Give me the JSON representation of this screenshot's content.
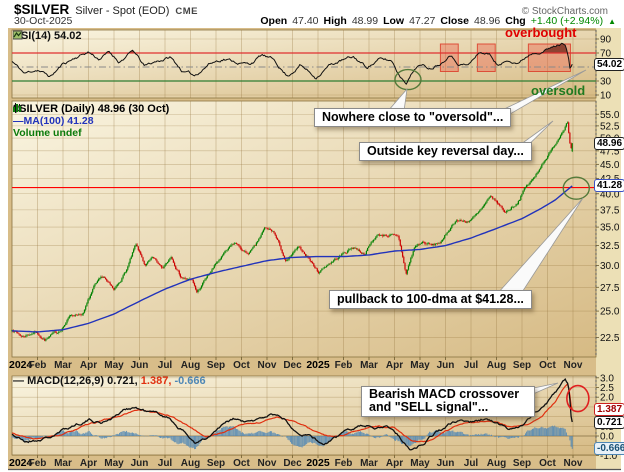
{
  "header": {
    "symbol": "$SILVER",
    "description": "Silver - Spot (EOD)",
    "exchange": "CME",
    "copyright": "© StockCharts.com",
    "date": "30-Oct-2025",
    "quote": {
      "open_label": "Open",
      "open": "47.40",
      "high_label": "High",
      "high": "48.99",
      "low_label": "Low",
      "low": "47.27",
      "close_label": "Close",
      "close": "48.96",
      "chg_label": "Chg",
      "chg": "+1.40 (+2.94%)",
      "chg_direction": "up"
    }
  },
  "rsi_panel": {
    "legend": "RSI(14) 54.02",
    "badge": "54.02",
    "overbought_label": "overbought",
    "oversold_label": "oversold"
  },
  "main_panel": {
    "legend": "$SILVER (Daily) 48.96 (30 Oct)",
    "ma_legend": "MA(100) 41.28",
    "volume_legend": "Volume undef",
    "price_badge": "48.96",
    "ma_badge": "41.28"
  },
  "macd_panel": {
    "legend": "MACD(12,26,9) 0.721,",
    "legend_signal": "1.387,",
    "legend_hist": "-0.666",
    "macd_badge": "0.721",
    "signal_badge": "1.387",
    "hist_badge": "-0.666"
  },
  "annotations": {
    "rsi_note": "Nowhere close to \"oversold\"...",
    "reversal_note": "Outside key reversal day...",
    "pullback_note": "pullback to 100-dma at $41.28...",
    "macd_note": "Bearish MACD crossover and \"SELL signal\"..."
  },
  "colors": {
    "background": "#d8bd89",
    "plot_light": "#faf5e1",
    "plot_dark": "#d6ba84",
    "gutter": "#ece0b6",
    "grid": "rgba(150,120,65,0.45)",
    "up_candle": "#008000",
    "down_candle": "#cc0000",
    "ma_line": "#2233bb",
    "rsi_line": "#111111",
    "overbought_line": "#e03030",
    "oversold_line": "#2e7d32",
    "midline": "#8a8a8a",
    "support_line": "#ff0000",
    "macd_line": "#111111",
    "signal_line": "#e03010",
    "histogram": "#4f87b5",
    "zone_fill": "rgba(236,90,70,0.38)",
    "zone_stroke": "rgba(220,60,40,0.85)",
    "rsi_overfill": "#7d3324",
    "circle_green": "#547a3a",
    "circle_red": "#e02020"
  },
  "chart_data": {
    "type": "candlestick",
    "x": {
      "months": [
        "2024",
        "Feb",
        "Mar",
        "Apr",
        "May",
        "Jun",
        "Jul",
        "Aug",
        "Sep",
        "Oct",
        "Nov",
        "Dec",
        "2025",
        "Feb",
        "Mar",
        "Apr",
        "May",
        "Jun",
        "Jul",
        "Aug",
        "Sep",
        "Oct",
        "Nov"
      ],
      "start": "Jan 2024",
      "end": "30-Oct-2025"
    },
    "panels": [
      {
        "name": "rsi",
        "type": "line",
        "ylim": [
          0,
          100
        ],
        "yticks": [
          "90",
          "70",
          "50",
          "30",
          "10"
        ],
        "ytick_values": [
          90,
          70,
          50,
          30,
          10
        ],
        "levels": {
          "overbought": 70,
          "oversold": 30,
          "mid": 50
        },
        "last": 54.02,
        "anchors": [
          [
            0,
            58
          ],
          [
            0.5,
            40
          ],
          [
            1,
            47
          ],
          [
            1.5,
            36
          ],
          [
            2,
            54
          ],
          [
            2.6,
            66
          ],
          [
            3.0,
            72
          ],
          [
            3.4,
            62
          ],
          [
            3.8,
            71
          ],
          [
            4.2,
            58
          ],
          [
            4.75,
            73
          ],
          [
            5.2,
            50
          ],
          [
            5.7,
            58
          ],
          [
            6.2,
            64
          ],
          [
            6.7,
            44
          ],
          [
            7.15,
            37
          ],
          [
            7.7,
            55
          ],
          [
            8.3,
            63
          ],
          [
            8.8,
            58
          ],
          [
            9.3,
            54
          ],
          [
            9.8,
            67
          ],
          [
            10.3,
            58
          ],
          [
            10.8,
            37
          ],
          [
            11.3,
            54
          ],
          [
            11.9,
            36
          ],
          [
            12.4,
            52
          ],
          [
            12.9,
            59
          ],
          [
            13.4,
            63
          ],
          [
            13.9,
            50
          ],
          [
            14.4,
            61
          ],
          [
            14.9,
            58
          ],
          [
            15.2,
            38
          ],
          [
            15.45,
            30
          ],
          [
            15.9,
            54
          ],
          [
            16.4,
            49
          ],
          [
            16.9,
            60
          ],
          [
            17.15,
            72
          ],
          [
            17.5,
            58
          ],
          [
            17.9,
            54
          ],
          [
            18.35,
            71
          ],
          [
            18.7,
            69
          ],
          [
            19.1,
            52
          ],
          [
            19.5,
            61
          ],
          [
            19.9,
            58
          ],
          [
            20.35,
            71
          ],
          [
            20.8,
            77
          ],
          [
            21.2,
            79
          ],
          [
            21.5,
            83
          ],
          [
            21.7,
            84
          ],
          [
            21.82,
            68
          ],
          [
            21.88,
            50
          ],
          [
            21.92,
            47
          ],
          [
            21.97,
            54.02
          ]
        ],
        "overbought_zones": [
          [
            16.8,
            17.5
          ],
          [
            18.25,
            18.95
          ],
          [
            20.25,
            21.9
          ]
        ],
        "circle_at": {
          "m": 15.45,
          "value": 32
        }
      },
      {
        "name": "price",
        "type": "candlestick",
        "scale": "log",
        "ylim": [
          20.8,
          58
        ],
        "yticks": [
          "55.0",
          "52.5",
          "50.0",
          "47.5",
          "45.0",
          "42.5",
          "40.0",
          "37.5",
          "35.0",
          "32.5",
          "30.0",
          "27.5",
          "25.0",
          "22.5"
        ],
        "ytick_values": [
          55,
          52.5,
          50,
          47.5,
          45,
          42.5,
          40,
          37.5,
          35,
          32.5,
          30,
          27.5,
          25,
          22.5
        ],
        "last_ohlc": {
          "open": 47.4,
          "high": 48.99,
          "low": 47.27,
          "close": 48.96
        },
        "ma_period": 100,
        "ma_last": 41.28,
        "support_line": 41.0,
        "close_anchors": [
          [
            0,
            23.3
          ],
          [
            0.4,
            22.6
          ],
          [
            0.9,
            23.1
          ],
          [
            1.3,
            22.4
          ],
          [
            1.8,
            22.9
          ],
          [
            2.3,
            24.6
          ],
          [
            2.8,
            24.9
          ],
          [
            3.2,
            27.3
          ],
          [
            3.6,
            28.4
          ],
          [
            4.0,
            26.8
          ],
          [
            4.5,
            29.5
          ],
          [
            4.85,
            32.3
          ],
          [
            5.2,
            29.9
          ],
          [
            5.5,
            30.6
          ],
          [
            5.9,
            29.3
          ],
          [
            6.25,
            31.2
          ],
          [
            6.6,
            29.0
          ],
          [
            7.05,
            28.3
          ],
          [
            7.25,
            26.9
          ],
          [
            7.7,
            28.8
          ],
          [
            8.2,
            30.9
          ],
          [
            8.75,
            32.6
          ],
          [
            9.2,
            31.3
          ],
          [
            9.55,
            32.2
          ],
          [
            9.9,
            34.5
          ],
          [
            10.25,
            34.2
          ],
          [
            10.75,
            30.3
          ],
          [
            11.2,
            31.9
          ],
          [
            11.6,
            31.0
          ],
          [
            12.0,
            29.2
          ],
          [
            12.4,
            30.3
          ],
          [
            12.9,
            31.3
          ],
          [
            13.4,
            32.4
          ],
          [
            13.8,
            31.6
          ],
          [
            14.3,
            33.9
          ],
          [
            14.85,
            34.1
          ],
          [
            15.15,
            33.3
          ],
          [
            15.45,
            28.9
          ],
          [
            15.8,
            32.3
          ],
          [
            16.1,
            32.9
          ],
          [
            16.5,
            32.4
          ],
          [
            16.9,
            33.1
          ],
          [
            17.4,
            36.1
          ],
          [
            17.8,
            35.8
          ],
          [
            18.3,
            36.9
          ],
          [
            18.8,
            39.1
          ],
          [
            19.1,
            38.0
          ],
          [
            19.35,
            37.0
          ],
          [
            19.8,
            38.7
          ],
          [
            20.1,
            40.9
          ],
          [
            20.5,
            42.6
          ],
          [
            20.9,
            46.2
          ],
          [
            21.2,
            47.9
          ],
          [
            21.45,
            50.3
          ],
          [
            21.65,
            52.5
          ],
          [
            21.78,
            54.3
          ],
          [
            21.86,
            50.8
          ],
          [
            21.92,
            47.6
          ],
          [
            21.97,
            48.96
          ]
        ],
        "ma_anchors": [
          [
            0,
            23.1
          ],
          [
            1,
            23.0
          ],
          [
            2,
            23.2
          ],
          [
            3,
            23.8
          ],
          [
            4,
            24.7
          ],
          [
            5,
            26.0
          ],
          [
            6,
            27.3
          ],
          [
            7,
            28.4
          ],
          [
            8,
            29.2
          ],
          [
            9,
            29.9
          ],
          [
            10,
            30.6
          ],
          [
            11,
            31.0
          ],
          [
            12,
            31.1
          ],
          [
            13,
            31.1
          ],
          [
            14,
            31.3
          ],
          [
            15,
            31.8
          ],
          [
            16,
            32.0
          ],
          [
            17,
            32.5
          ],
          [
            18,
            33.5
          ],
          [
            19,
            34.8
          ],
          [
            20,
            36.2
          ],
          [
            20.7,
            37.6
          ],
          [
            21.3,
            39.0
          ],
          [
            21.97,
            41.28
          ]
        ],
        "circle_at": {
          "m": 22.05,
          "value": 40.9
        }
      },
      {
        "name": "macd",
        "type": "line+histogram",
        "ylim": [
          -1.1,
          3.1
        ],
        "yticks": [
          "3.0",
          "2.5",
          "2.0",
          "1.5",
          "1.0",
          "0.5",
          "0.0",
          "-0.5",
          "-1.0"
        ],
        "ytick_values": [
          3,
          2.5,
          2,
          1.5,
          1,
          0.5,
          0,
          -0.5,
          -1
        ],
        "last": {
          "macd": 0.721,
          "signal": 1.387,
          "histogram": -0.666
        },
        "macd_anchors": [
          [
            0,
            0.1
          ],
          [
            0.5,
            -0.3
          ],
          [
            1,
            -0.2
          ],
          [
            1.5,
            -0.05
          ],
          [
            2,
            0.25
          ],
          [
            2.5,
            0.6
          ],
          [
            3,
            0.85
          ],
          [
            3.5,
            0.7
          ],
          [
            4,
            1.05
          ],
          [
            4.5,
            1.4
          ],
          [
            4.8,
            1.5
          ],
          [
            5.3,
            1.25
          ],
          [
            5.8,
            1.1
          ],
          [
            6.2,
            0.9
          ],
          [
            6.8,
            0.15
          ],
          [
            7.2,
            -0.35
          ],
          [
            7.7,
            -0.15
          ],
          [
            8.2,
            0.45
          ],
          [
            8.7,
            0.8
          ],
          [
            9.2,
            0.65
          ],
          [
            9.7,
            0.8
          ],
          [
            10.2,
            1.15
          ],
          [
            10.7,
            0.85
          ],
          [
            11.2,
            0.3
          ],
          [
            11.7,
            0.1
          ],
          [
            12.2,
            -0.45
          ],
          [
            12.7,
            -0.15
          ],
          [
            13.2,
            0.35
          ],
          [
            13.7,
            0.6
          ],
          [
            14.2,
            0.5
          ],
          [
            14.7,
            0.6
          ],
          [
            15.1,
            0.15
          ],
          [
            15.6,
            -0.65
          ],
          [
            16.1,
            -0.35
          ],
          [
            16.6,
            0.2
          ],
          [
            17.1,
            0.55
          ],
          [
            17.6,
            0.8
          ],
          [
            18.1,
            0.7
          ],
          [
            18.6,
            0.9
          ],
          [
            19.1,
            0.55
          ],
          [
            19.5,
            0.3
          ],
          [
            20,
            0.65
          ],
          [
            20.5,
            1.15
          ],
          [
            21,
            1.75
          ],
          [
            21.4,
            2.35
          ],
          [
            21.7,
            2.9
          ],
          [
            21.82,
            2.6
          ],
          [
            21.9,
            1.6
          ],
          [
            21.97,
            0.721
          ]
        ],
        "signal_anchors": [
          [
            0,
            0.15
          ],
          [
            0.7,
            -0.15
          ],
          [
            1.3,
            -0.12
          ],
          [
            2,
            0.05
          ],
          [
            2.7,
            0.45
          ],
          [
            3.5,
            0.75
          ],
          [
            4.3,
            1.05
          ],
          [
            5,
            1.35
          ],
          [
            5.6,
            1.22
          ],
          [
            6.3,
            1.0
          ],
          [
            7,
            0.45
          ],
          [
            7.6,
            -0.05
          ],
          [
            8.3,
            0.2
          ],
          [
            9,
            0.6
          ],
          [
            9.7,
            0.68
          ],
          [
            10.4,
            1.0
          ],
          [
            11,
            0.8
          ],
          [
            11.7,
            0.35
          ],
          [
            12.4,
            -0.05
          ],
          [
            13,
            -0.02
          ],
          [
            13.7,
            0.35
          ],
          [
            14.4,
            0.5
          ],
          [
            15,
            0.45
          ],
          [
            15.7,
            -0.25
          ],
          [
            16.3,
            -0.3
          ],
          [
            17,
            0.25
          ],
          [
            17.7,
            0.6
          ],
          [
            18.4,
            0.72
          ],
          [
            19,
            0.68
          ],
          [
            19.6,
            0.4
          ],
          [
            20.2,
            0.6
          ],
          [
            20.8,
            1.0
          ],
          [
            21.3,
            1.75
          ],
          [
            21.6,
            2.4
          ],
          [
            21.8,
            2.7
          ],
          [
            21.97,
            1.387
          ]
        ],
        "circle_at": {
          "m": 21.72,
          "value": 2.55
        }
      }
    ]
  }
}
